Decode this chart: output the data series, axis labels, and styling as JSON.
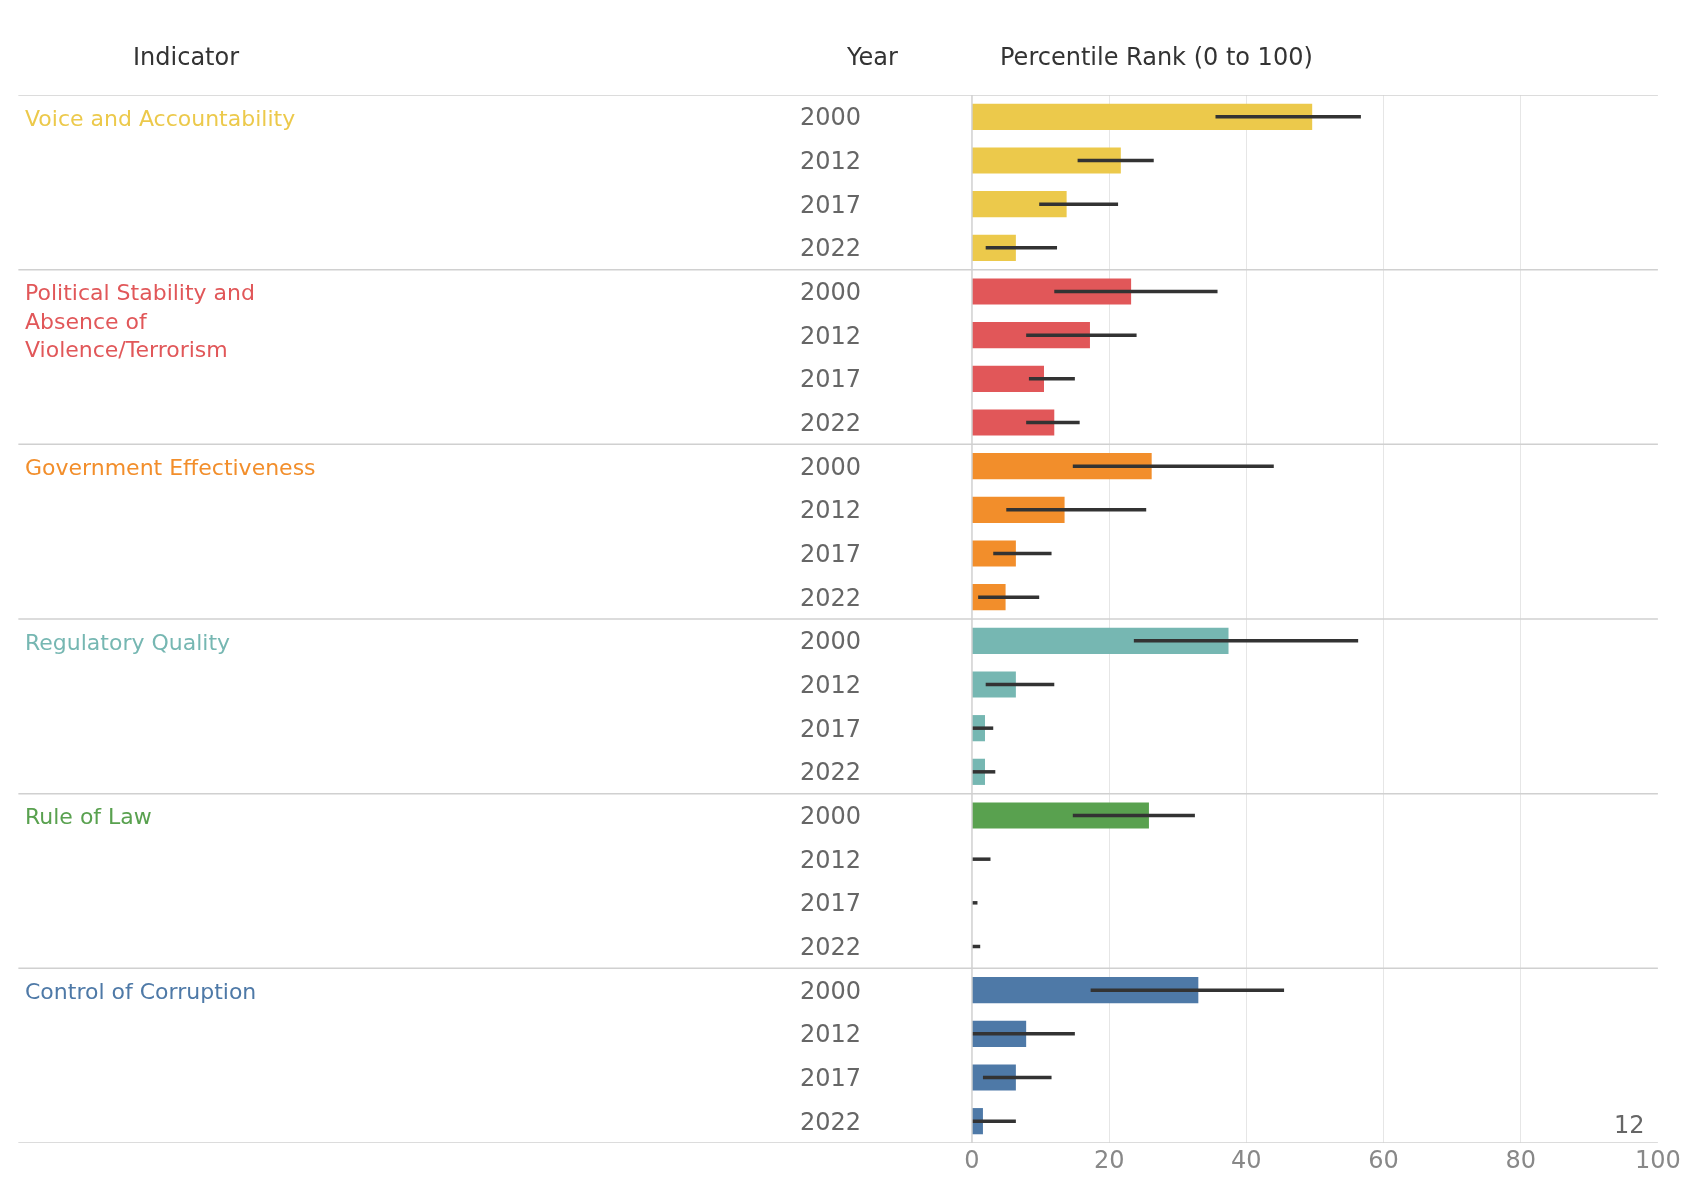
{
  "chart_data": {
    "type": "bar",
    "orientation": "horizontal",
    "xlabel": "Percentile Rank (0 to 100)",
    "ylabel": "Year",
    "legend_title": "Indicator",
    "categories": [
      "2000",
      "2012",
      "2017",
      "2022",
      "2000",
      "2012",
      "2017",
      "2022",
      "2000",
      "2012",
      "2017",
      "2022",
      "2000",
      "2012",
      "2017",
      "2022",
      "2000",
      "2012",
      "2017",
      "2022",
      "2000",
      "2012",
      "2017",
      "2022"
    ],
    "series": [
      {
        "name": "Voice and Accountability",
        "color": "#ecc94b",
        "values": [
          49.6,
          21.7,
          13.8,
          6.4,
          null,
          null,
          null,
          null,
          null,
          null,
          null,
          null,
          null,
          null,
          null,
          null,
          null,
          null,
          null,
          null,
          null,
          null,
          null,
          null
        ],
        "errors": [
          [
            35.5,
            56.7
          ],
          [
            15.4,
            26.5
          ],
          [
            9.8,
            21.3
          ],
          [
            2.0,
            12.4
          ],
          null,
          null,
          null,
          null,
          null,
          null,
          null,
          null,
          null,
          null,
          null,
          null,
          null,
          null,
          null,
          null,
          null,
          null,
          null,
          null
        ]
      },
      {
        "name": "Political Stability and Absence of Violence/Terrorism",
        "color": "#e15759",
        "values": [
          null,
          null,
          null,
          null,
          23.2,
          17.2,
          10.5,
          12.0,
          null,
          null,
          null,
          null,
          null,
          null,
          null,
          null,
          null,
          null,
          null,
          null,
          null,
          null,
          null,
          null
        ],
        "errors": [
          null,
          null,
          null,
          null,
          [
            12.0,
            35.8
          ],
          [
            7.9,
            24.0
          ],
          [
            8.3,
            15.0
          ],
          [
            7.9,
            15.7
          ],
          null,
          null,
          null,
          null,
          null,
          null,
          null,
          null,
          null,
          null,
          null,
          null,
          null,
          null,
          null,
          null
        ]
      },
      {
        "name": "Government Effectiveness",
        "color": "#f28e2b",
        "values": [
          null,
          null,
          null,
          null,
          null,
          null,
          null,
          null,
          26.2,
          13.5,
          6.4,
          4.9,
          null,
          null,
          null,
          null,
          null,
          null,
          null,
          null,
          null,
          null,
          null,
          null
        ],
        "errors": [
          null,
          null,
          null,
          null,
          null,
          null,
          null,
          null,
          [
            14.7,
            44.0
          ],
          [
            5.0,
            25.4
          ],
          [
            3.1,
            11.6
          ],
          [
            0.9,
            9.8
          ],
          null,
          null,
          null,
          null,
          null,
          null,
          null,
          null,
          null,
          null,
          null,
          null
        ]
      },
      {
        "name": "Regulatory Quality",
        "color": "#76b7b2",
        "values": [
          null,
          null,
          null,
          null,
          null,
          null,
          null,
          null,
          null,
          null,
          null,
          null,
          37.4,
          6.4,
          1.9,
          1.9,
          null,
          null,
          null,
          null,
          null,
          null,
          null,
          null
        ],
        "errors": [
          null,
          null,
          null,
          null,
          null,
          null,
          null,
          null,
          null,
          null,
          null,
          null,
          [
            23.6,
            56.3
          ],
          [
            2.0,
            12.0
          ],
          [
            0,
            3.1
          ],
          [
            0,
            3.4
          ],
          null,
          null,
          null,
          null,
          null,
          null,
          null,
          null
        ]
      },
      {
        "name": "Rule of Law",
        "color": "#59a14f",
        "values": [
          null,
          null,
          null,
          null,
          null,
          null,
          null,
          null,
          null,
          null,
          null,
          null,
          null,
          null,
          null,
          null,
          25.8,
          0,
          0,
          0,
          null,
          null,
          null,
          null
        ],
        "errors": [
          null,
          null,
          null,
          null,
          null,
          null,
          null,
          null,
          null,
          null,
          null,
          null,
          null,
          null,
          null,
          null,
          [
            14.7,
            32.5
          ],
          [
            0,
            2.7
          ],
          [
            0,
            0.8
          ],
          [
            0,
            1.2
          ],
          null,
          null,
          null,
          null
        ]
      },
      {
        "name": "Control of Corruption",
        "color": "#4e79a7",
        "values": [
          null,
          null,
          null,
          null,
          null,
          null,
          null,
          null,
          null,
          null,
          null,
          null,
          null,
          null,
          null,
          null,
          null,
          null,
          null,
          null,
          33.0,
          7.9,
          6.4,
          1.6
        ],
        "errors": [
          null,
          null,
          null,
          null,
          null,
          null,
          null,
          null,
          null,
          null,
          null,
          null,
          null,
          null,
          null,
          null,
          null,
          null,
          null,
          null,
          [
            17.3,
            45.5
          ],
          [
            0,
            15.0
          ],
          [
            1.6,
            11.6
          ],
          [
            0,
            6.4
          ]
        ]
      }
    ],
    "xlim": [
      0,
      100
    ],
    "xticks": [
      0,
      20,
      40,
      60,
      80,
      100
    ],
    "grid": "x",
    "annotations": [
      "12"
    ]
  }
}
